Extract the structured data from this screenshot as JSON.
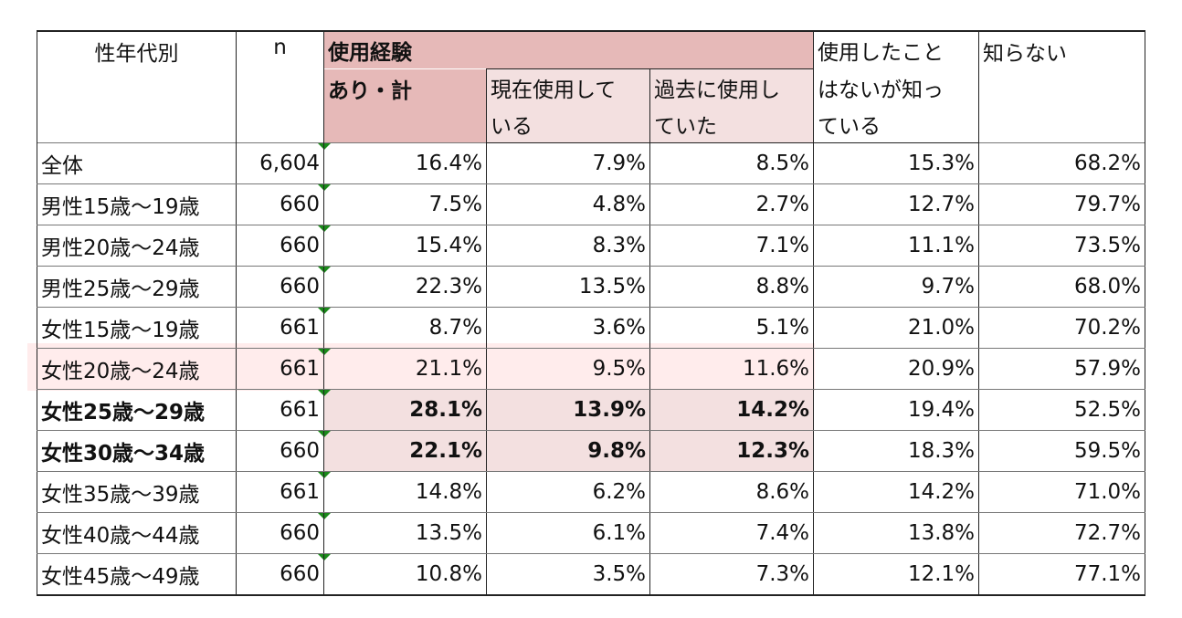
{
  "header": {
    "col_group": "性年代別",
    "col_n": "n",
    "experience_line1": "使用経験",
    "experience_line2": "あり・計",
    "current_line1": "現在使用して",
    "current_line2": "いる",
    "past_line1": "過去に使用し",
    "past_line2": "ていた",
    "aware_line1": "使用したこと",
    "aware_line2": "はないが知っ",
    "aware_line3": "ている",
    "unaware": "知らない"
  },
  "rows": [
    {
      "group": "全体",
      "n": "6,604",
      "experience": "16.4%",
      "current": "7.9%",
      "past": "8.5%",
      "aware": "15.3%",
      "unaware": "68.2%"
    },
    {
      "group": "男性15歳～19歳",
      "n": "660",
      "experience": "7.5%",
      "current": "4.8%",
      "past": "2.7%",
      "aware": "12.7%",
      "unaware": "79.7%"
    },
    {
      "group": "男性20歳～24歳",
      "n": "660",
      "experience": "15.4%",
      "current": "8.3%",
      "past": "7.1%",
      "aware": "11.1%",
      "unaware": "73.5%"
    },
    {
      "group": "男性25歳～29歳",
      "n": "660",
      "experience": "22.3%",
      "current": "13.5%",
      "past": "8.8%",
      "aware": "9.7%",
      "unaware": "68.0%"
    },
    {
      "group": "女性15歳～19歳",
      "n": "661",
      "experience": "8.7%",
      "current": "3.6%",
      "past": "5.1%",
      "aware": "21.0%",
      "unaware": "70.2%"
    },
    {
      "group": "女性20歳～24歳",
      "n": "661",
      "experience": "21.1%",
      "current": "9.5%",
      "past": "11.6%",
      "aware": "20.9%",
      "unaware": "57.9%"
    },
    {
      "group": "女性25歳～29歳",
      "n": "661",
      "experience": "28.1%",
      "current": "13.9%",
      "past": "14.2%",
      "aware": "19.4%",
      "unaware": "52.5%"
    },
    {
      "group": "女性30歳～34歳",
      "n": "660",
      "experience": "22.1%",
      "current": "9.8%",
      "past": "12.3%",
      "aware": "18.3%",
      "unaware": "59.5%"
    },
    {
      "group": "女性35歳～39歳",
      "n": "661",
      "experience": "14.8%",
      "current": "6.2%",
      "past": "8.6%",
      "aware": "14.2%",
      "unaware": "71.0%"
    },
    {
      "group": "女性40歳～44歳",
      "n": "660",
      "experience": "13.5%",
      "current": "6.1%",
      "past": "7.4%",
      "aware": "13.8%",
      "unaware": "72.7%"
    },
    {
      "group": "女性45歳～49歳",
      "n": "660",
      "experience": "10.8%",
      "current": "3.5%",
      "past": "7.3%",
      "aware": "12.1%",
      "unaware": "77.1%"
    }
  ],
  "colors": {
    "experience_header": "#e6b9b8",
    "sub_header": "#f3e0e0",
    "highlight_row": "#ffecec",
    "marker": "#1a8a1a"
  }
}
